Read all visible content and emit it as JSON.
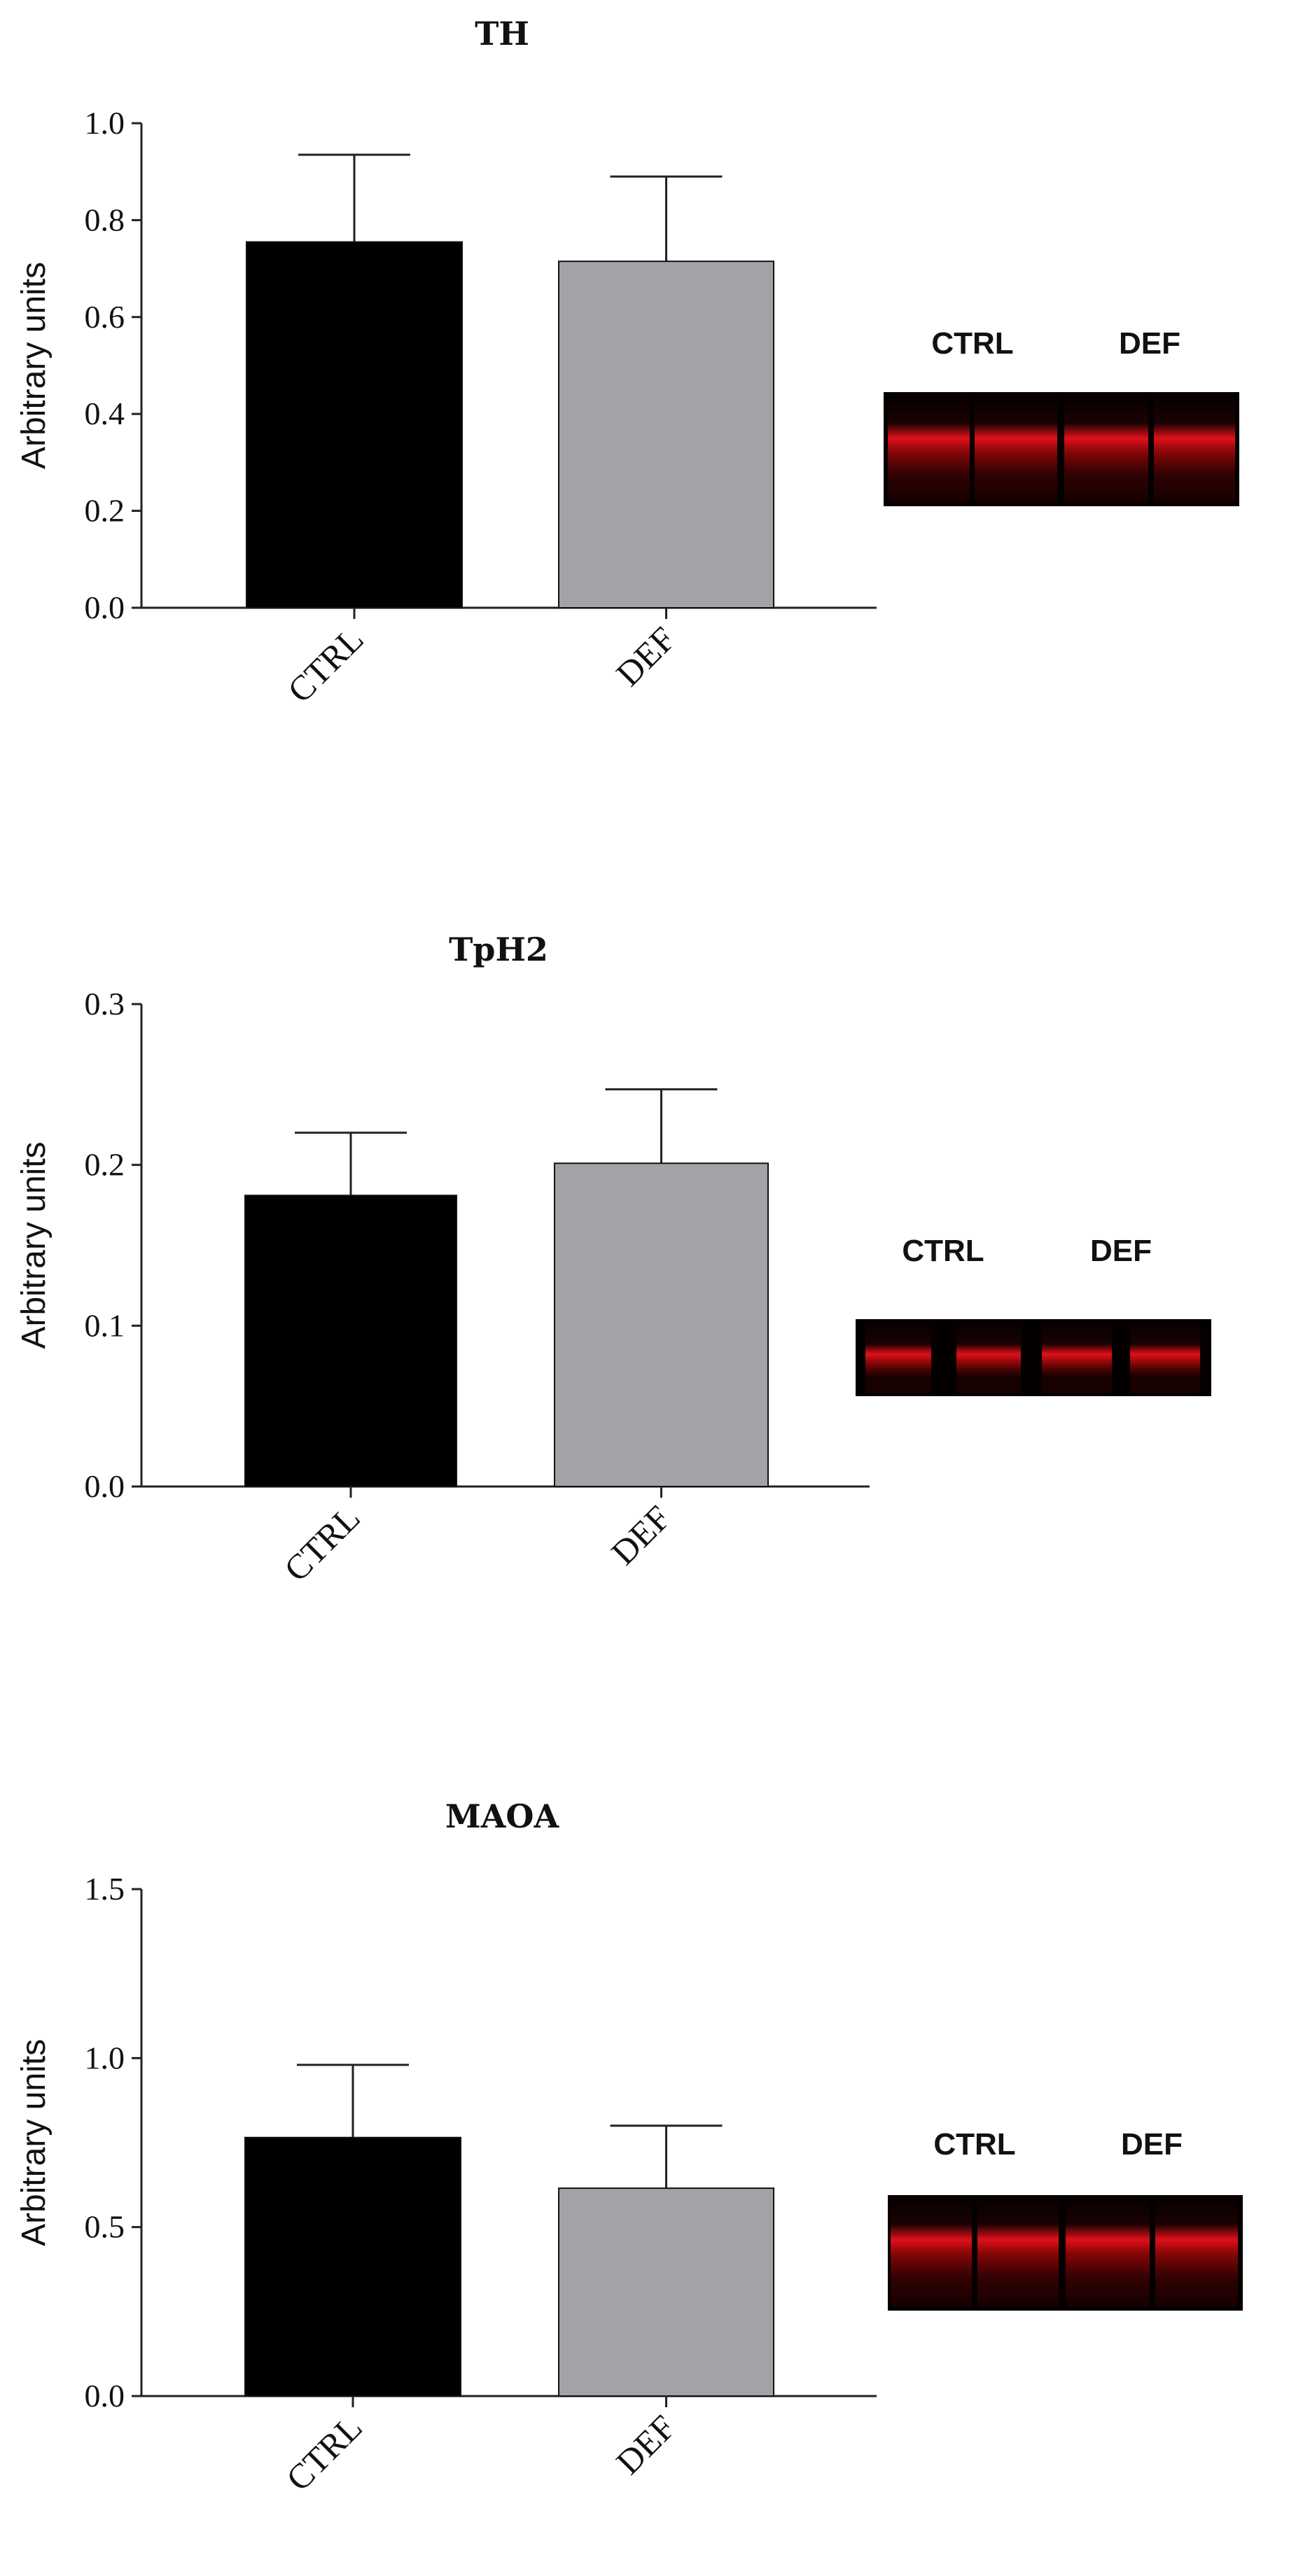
{
  "chart_data": [
    {
      "type": "bar",
      "title": "TH",
      "ylabel": "Arbitrary units",
      "xlabel": "",
      "categories": [
        "CTRL",
        "DEF"
      ],
      "values": [
        0.755,
        0.715
      ],
      "error_upper": [
        0.935,
        0.89
      ],
      "ylim": [
        0,
        1.0
      ],
      "yticks": [
        "0.0",
        "0.2",
        "0.4",
        "0.6",
        "0.8",
        "1.0"
      ],
      "colors": [
        "#000000",
        "#a3a2a7"
      ],
      "blot": {
        "labels": [
          "CTRL",
          "DEF"
        ]
      }
    },
    {
      "type": "bar",
      "title": "TpH2",
      "ylabel": "Arbitrary units",
      "xlabel": "",
      "categories": [
        "CTRL",
        "DEF"
      ],
      "values": [
        0.181,
        0.201
      ],
      "error_upper": [
        0.22,
        0.247
      ],
      "ylim": [
        0,
        0.3
      ],
      "yticks": [
        "0.0",
        "0.1",
        "0.2",
        "0.3"
      ],
      "colors": [
        "#000000",
        "#a3a2a7"
      ],
      "blot": {
        "labels": [
          "CTRL",
          "DEF"
        ]
      }
    },
    {
      "type": "bar",
      "title": "MAOA",
      "ylabel": "Arbitrary units",
      "xlabel": "",
      "categories": [
        "CTRL",
        "DEF"
      ],
      "values": [
        0.765,
        0.615
      ],
      "error_upper": [
        0.98,
        0.8
      ],
      "ylim": [
        0,
        1.5
      ],
      "yticks": [
        "0.0",
        "0.5",
        "1.0",
        "1.5"
      ],
      "colors": [
        "#000000",
        "#a3a2a7"
      ],
      "blot": {
        "labels": [
          "CTRL",
          "DEF"
        ]
      }
    }
  ]
}
